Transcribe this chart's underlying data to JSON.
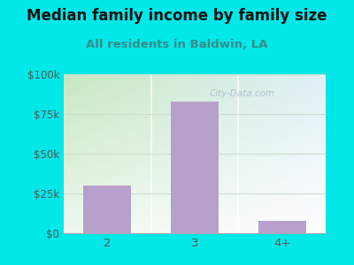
{
  "title": "Median family income by family size",
  "subtitle": "All residents in Baldwin, LA",
  "categories": [
    "2",
    "3",
    "4+"
  ],
  "values": [
    30000,
    83000,
    8000
  ],
  "bar_color": "#b8a0cc",
  "ylim": [
    0,
    100000
  ],
  "yticks": [
    0,
    25000,
    50000,
    75000,
    100000
  ],
  "ytick_labels": [
    "$0",
    "$25k",
    "$50k",
    "$75k",
    "$100k"
  ],
  "bg_color": "#00e8e8",
  "plot_bg_topleft": "#c8e8c0",
  "plot_bg_topright": "#e0f0f8",
  "plot_bg_bottomright": "#ffffff",
  "plot_bg_bottomleft": "#e8f8f0",
  "title_color": "#111111",
  "subtitle_color": "#3a8a8a",
  "tick_color": "#555555",
  "watermark": "City-Data.com",
  "title_fontsize": 12,
  "subtitle_fontsize": 9.5,
  "grid_color": "#ccddcc",
  "bar_width": 0.55
}
